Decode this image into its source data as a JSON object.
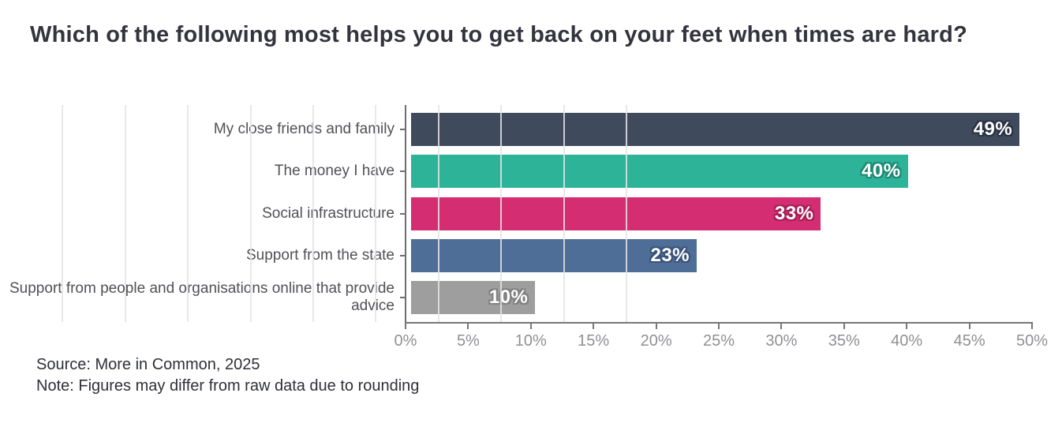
{
  "title": "Which of the following most helps you to get back on your feet when times are hard?",
  "footer": {
    "source": "Source: More in Common, 2025",
    "note": "Note: Figures may differ from raw data due to rounding"
  },
  "chart_data": {
    "type": "bar",
    "orientation": "horizontal",
    "title": "Which of the following most helps you to get back on your feet when times are hard?",
    "categories": [
      "My close friends and family",
      "The money I have",
      "Social infrastructure",
      "Support from the state",
      "Support from people and organisations online that provide advice"
    ],
    "values": [
      49,
      40,
      33,
      23,
      10
    ],
    "value_labels": [
      "49%",
      "40%",
      "33%",
      "23%",
      "10%"
    ],
    "bar_colors": [
      "#404a5d",
      "#2db398",
      "#d52d72",
      "#4e6d97",
      "#9e9e9e"
    ],
    "label_outline_colors": [
      "#2a3342",
      "#1e8a74",
      "#a61f57",
      "#3b547a",
      "#818181"
    ],
    "xlim": [
      0,
      50
    ],
    "x_tick_values": [
      0,
      5,
      10,
      15,
      20,
      25,
      30,
      35,
      40,
      45,
      50
    ],
    "x_tick_labels": [
      "0%",
      "5%",
      "10%",
      "15%",
      "20%",
      "25%",
      "30%",
      "35%",
      "40%",
      "45%",
      "50%"
    ],
    "grid": "vertical",
    "legend": "none",
    "background": "#ffffff"
  }
}
